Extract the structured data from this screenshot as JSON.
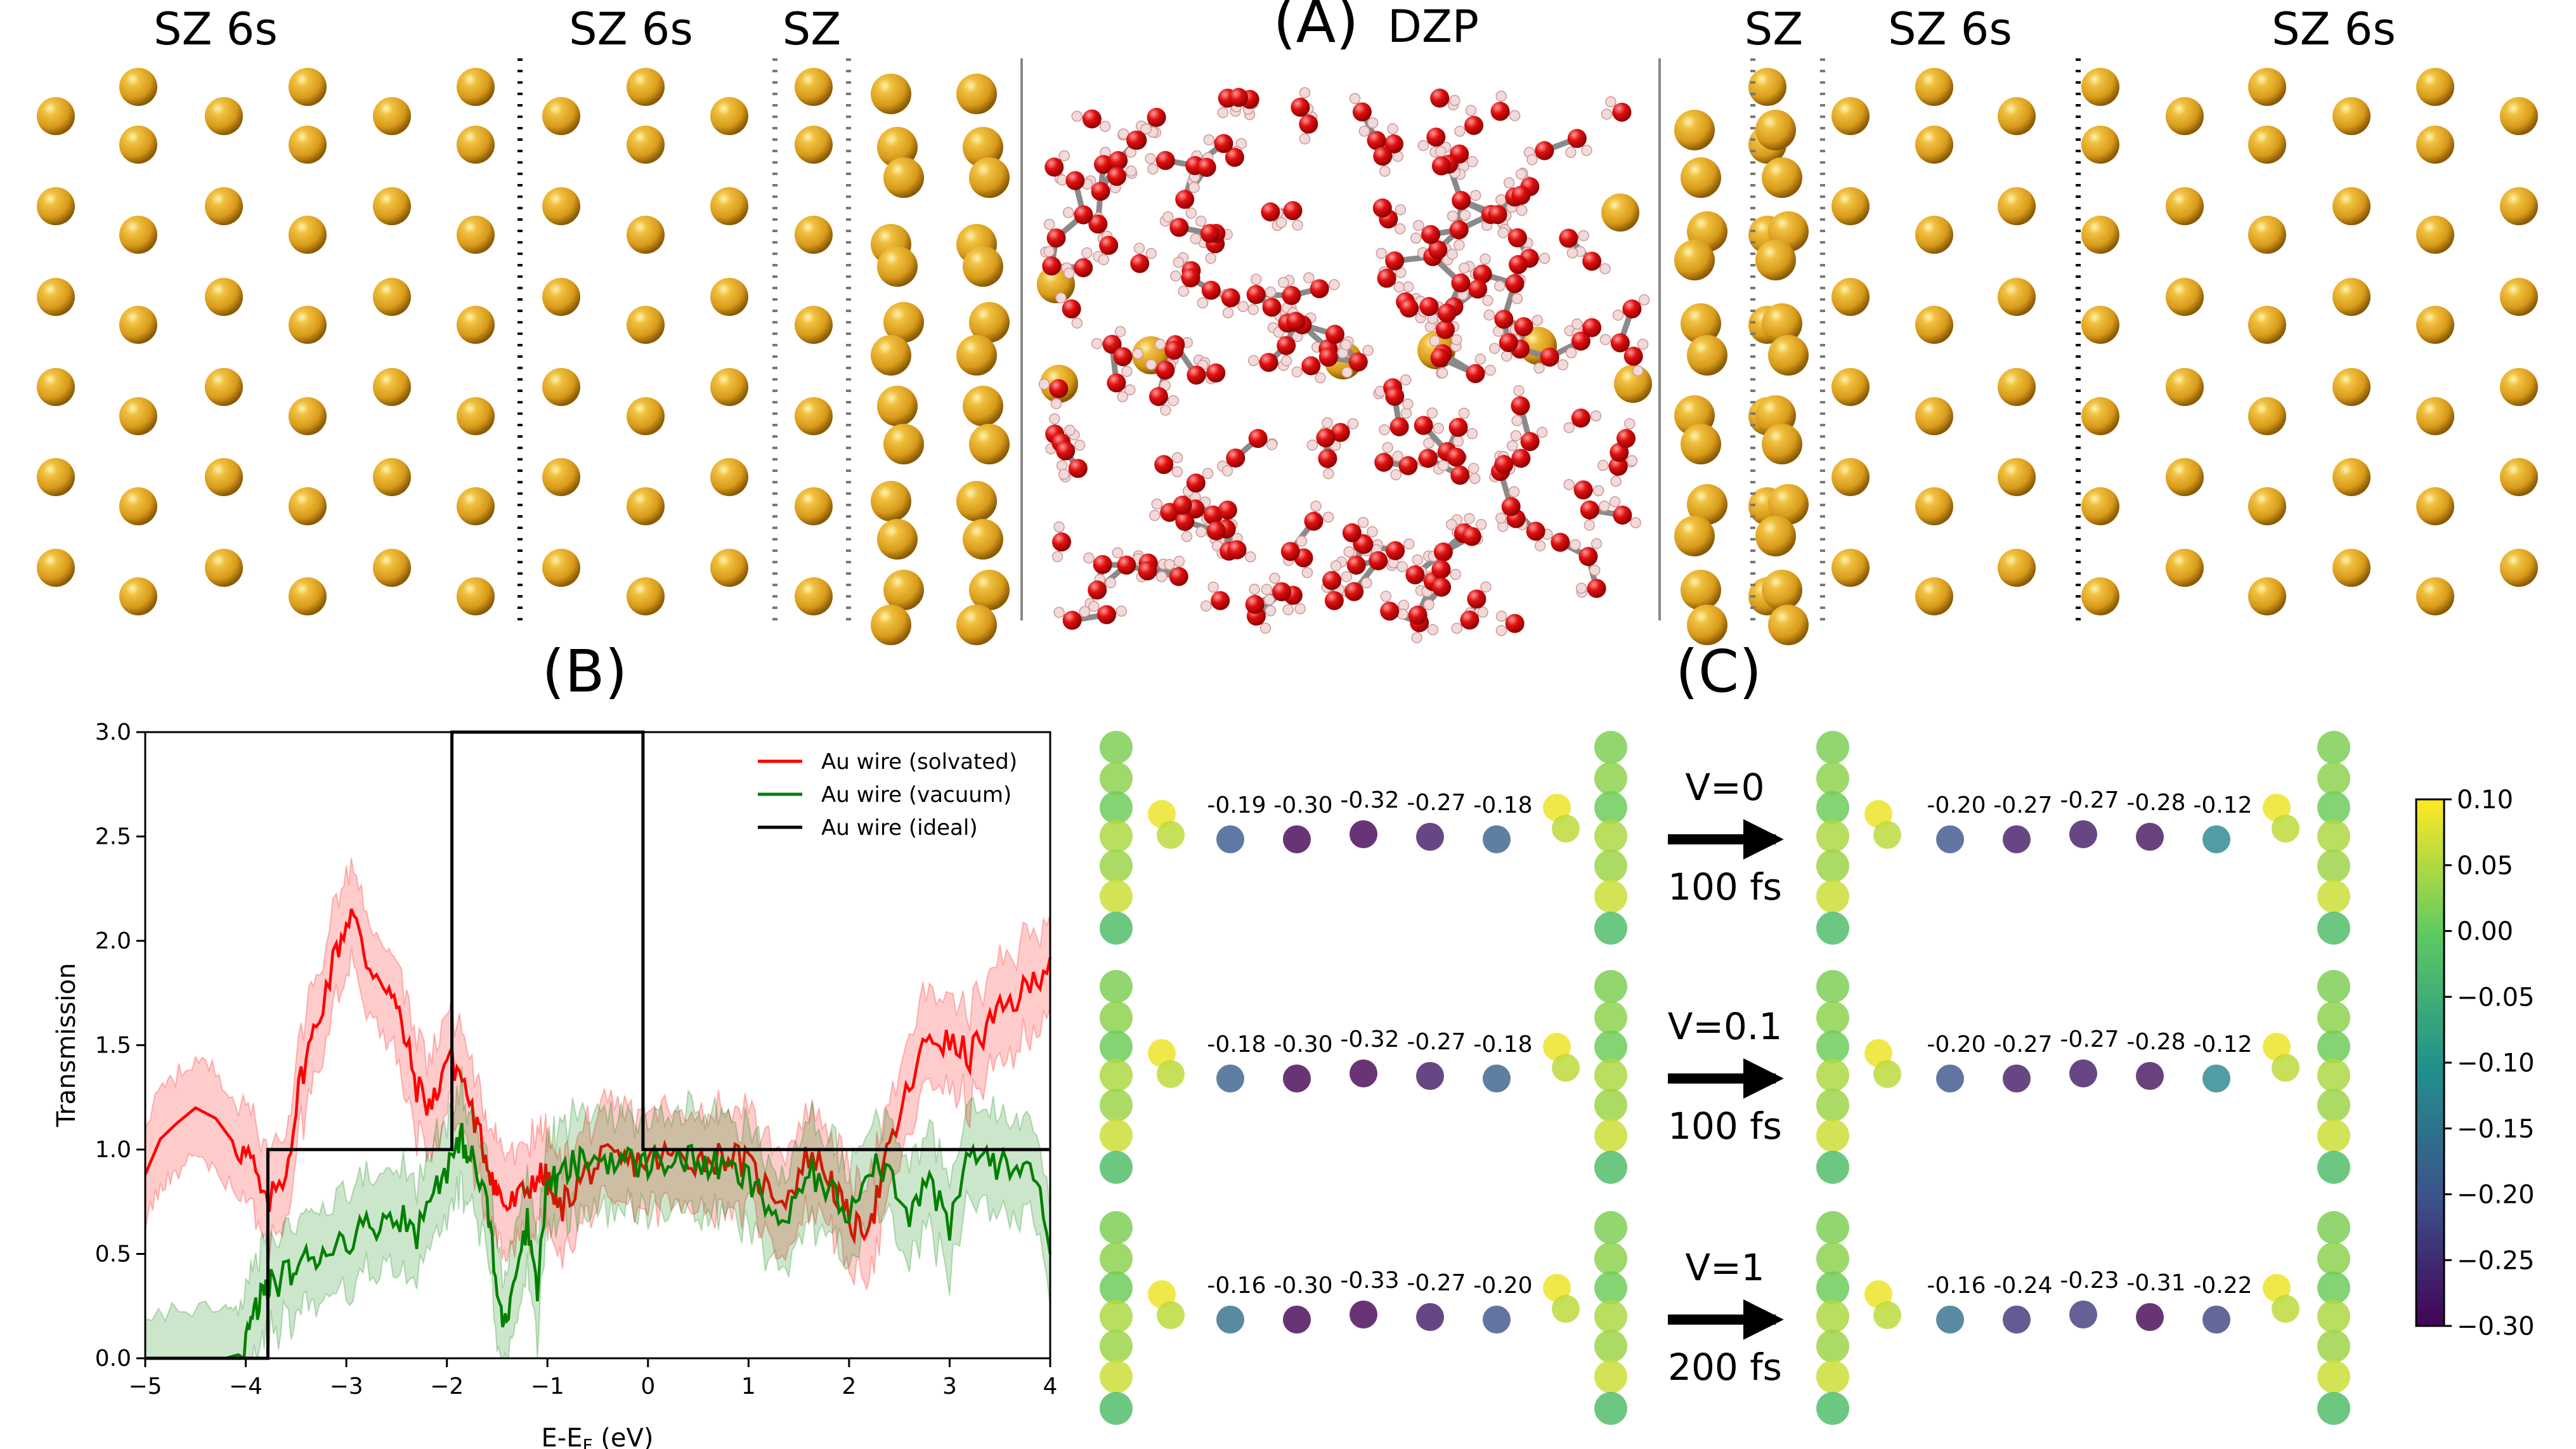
{
  "panel_a": {
    "label": "(A)",
    "center_label": "DZP",
    "region_labels": [
      "SZ 6s",
      "SZ 6s",
      "SZ",
      "SZ",
      "SZ 6s",
      "SZ 6s"
    ]
  },
  "panel_b": {
    "label": "(B)"
  },
  "panel_c": {
    "label": "(C)",
    "rows": [
      {
        "arrow_top": "V=0",
        "arrow_bottom": "100 fs",
        "before": [
          "-0.19",
          "-0.30",
          "-0.32",
          "-0.27",
          "-0.18"
        ],
        "after": [
          "-0.20",
          "-0.27",
          "-0.27",
          "-0.28",
          "-0.12"
        ]
      },
      {
        "arrow_top": "V=0.1",
        "arrow_bottom": "100 fs",
        "before": [
          "-0.18",
          "-0.30",
          "-0.32",
          "-0.27",
          "-0.18"
        ],
        "after": [
          "-0.20",
          "-0.27",
          "-0.27",
          "-0.28",
          "-0.12"
        ]
      },
      {
        "arrow_top": "V=1",
        "arrow_bottom": "200 fs",
        "before": [
          "-0.16",
          "-0.30",
          "-0.33",
          "-0.27",
          "-0.20"
        ],
        "after": [
          "-0.16",
          "-0.24",
          "-0.23",
          "-0.31",
          "-0.22"
        ]
      }
    ],
    "colorbar": {
      "ticks": [
        "0.10",
        "0.05",
        "0.00",
        "−0.05",
        "−0.10",
        "−0.15",
        "−0.20",
        "−0.25",
        "−0.30"
      ],
      "colormap": "viridis"
    }
  },
  "chart_data": {
    "type": "line",
    "xlabel": "E-E_F (eV)",
    "ylabel": "Transmission",
    "xlim": [
      -5,
      4
    ],
    "ylim": [
      0,
      3
    ],
    "xticks": [
      "−5",
      "−4",
      "−3",
      "−2",
      "−1",
      "0",
      "1",
      "2",
      "3",
      "4"
    ],
    "yticks": [
      "0.0",
      "0.5",
      "1.0",
      "1.5",
      "2.0",
      "2.5",
      "3.0"
    ],
    "legend_position": "top-right",
    "series": [
      {
        "name": "Au wire (solvated)",
        "color": "#ff0000",
        "band": true,
        "x": [
          -5,
          -4.85,
          -4.7,
          -4.5,
          -4.3,
          -4.1,
          -3.95,
          -3.8,
          -3.6,
          -3.45,
          -3.3,
          -3.1,
          -2.95,
          -2.8,
          -2.6,
          -2.45,
          -2.3,
          -2.15,
          -2.0,
          -1.85,
          -1.7,
          -1.6,
          -1.5,
          -1.4,
          -1.25,
          -1.1,
          -1.0,
          -0.9,
          -0.75,
          -0.6,
          -0.4,
          -0.2,
          0.0,
          0.2,
          0.4,
          0.6,
          0.8,
          1.0,
          1.2,
          1.4,
          1.6,
          1.8,
          1.95,
          2.1,
          2.25,
          2.4,
          2.6,
          2.8,
          3.0,
          3.2,
          3.4,
          3.6,
          3.8,
          4.0
        ],
        "y": [
          0.88,
          1.05,
          1.12,
          1.2,
          1.15,
          1.02,
          0.95,
          0.72,
          0.9,
          1.35,
          1.6,
          1.95,
          2.15,
          1.9,
          1.8,
          1.6,
          1.3,
          1.2,
          1.45,
          1.35,
          1.1,
          0.95,
          0.8,
          0.72,
          0.78,
          0.88,
          0.85,
          0.7,
          0.8,
          0.9,
          0.95,
          0.94,
          0.95,
          0.97,
          0.96,
          0.95,
          0.98,
          0.92,
          0.8,
          0.78,
          0.98,
          0.88,
          0.7,
          0.6,
          0.72,
          1.0,
          1.3,
          1.55,
          1.5,
          1.45,
          1.6,
          1.7,
          1.78,
          1.92
        ]
      },
      {
        "name": "Au wire (vacuum)",
        "color": "#008000",
        "band": true,
        "x": [
          -5,
          -4.6,
          -4.2,
          -4.05,
          -3.95,
          -3.85,
          -3.75,
          -3.6,
          -3.45,
          -3.3,
          -3.1,
          -2.9,
          -2.7,
          -2.5,
          -2.3,
          -2.1,
          -1.95,
          -1.85,
          -1.75,
          -1.6,
          -1.5,
          -1.42,
          -1.32,
          -1.2,
          -1.1,
          -1.0,
          -0.9,
          -0.75,
          -0.6,
          -0.4,
          -0.2,
          0.0,
          0.2,
          0.4,
          0.6,
          0.8,
          1.0,
          1.2,
          1.4,
          1.6,
          1.8,
          2.0,
          2.2,
          2.4,
          2.6,
          2.8,
          3.0,
          3.2,
          3.4,
          3.6,
          3.8,
          4.0
        ],
        "y": [
          0.0,
          0.0,
          0.0,
          0.02,
          0.15,
          0.3,
          0.35,
          0.4,
          0.45,
          0.5,
          0.55,
          0.6,
          0.65,
          0.7,
          0.6,
          0.85,
          0.95,
          1.05,
          0.95,
          0.75,
          0.3,
          0.15,
          0.45,
          0.65,
          0.35,
          0.85,
          0.85,
          0.92,
          0.95,
          0.96,
          0.94,
          0.93,
          0.96,
          0.95,
          0.93,
          0.9,
          0.85,
          0.72,
          0.65,
          0.9,
          0.8,
          0.7,
          0.95,
          0.9,
          0.7,
          0.85,
          0.6,
          1.0,
          0.95,
          0.9,
          0.98,
          0.5
        ]
      },
      {
        "name": "Au wire (ideal)",
        "color": "#000000",
        "band": false,
        "step": true,
        "x": [
          -5,
          -3.78,
          -3.78,
          -1.95,
          -1.95,
          -0.05,
          -0.05,
          4
        ],
        "y": [
          0,
          0,
          1,
          1,
          3,
          3,
          1,
          1
        ]
      }
    ]
  }
}
